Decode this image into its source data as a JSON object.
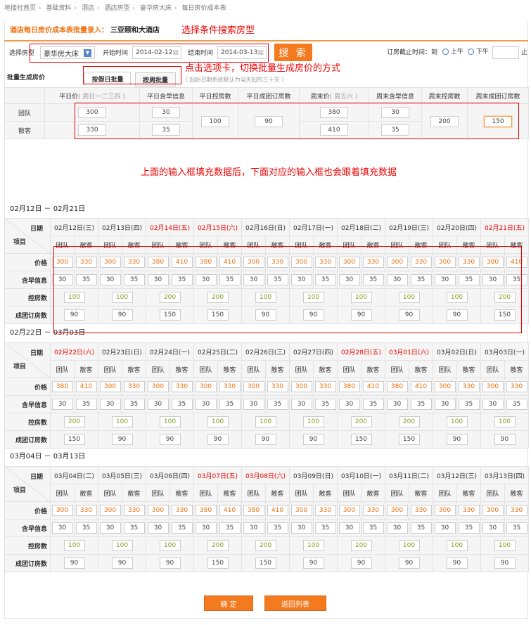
{
  "breadcrumb": [
    "地接社首页",
    "基础资料",
    "酒店",
    "酒店房型",
    "豪华房大床",
    "每日房价成本表"
  ],
  "header": {
    "title": "酒店每日房价成本表批量录入：",
    "hotel": "三亚颐和大酒店"
  },
  "annotations": {
    "search": "选择条件搜索房型",
    "tabs": "点击选项卡，切换批量生成房价的方式",
    "fill": "上面的输入框填充数据后，下面对应的输入框也会跟着填充数据"
  },
  "filters": {
    "room_type_label": "选择房型",
    "room_type_value": "豪华房大床",
    "start_label": "开始时间",
    "start_value": "2014-02-12",
    "end_label": "结束时间",
    "end_value": "2014-03-13",
    "search_button": "搜 索",
    "deadline_label": "订房截止时间：到",
    "am_label": "上午",
    "pm_label": "下午",
    "deadline_value": "",
    "deadline_suffix": "止"
  },
  "batch": {
    "label": "批量生成房价",
    "tabs": [
      "按假日批量",
      "按周批量"
    ],
    "active_tab": 0,
    "note": "（ 起始日期系统默认为当天起的三十天 ）",
    "headers": [
      {
        "main": "平日价",
        "sub": "( 周日一二三四 )"
      },
      {
        "main": "平日含早信息",
        "sub": ""
      },
      {
        "main": "平日控房数",
        "sub": ""
      },
      {
        "main": "平日成团订房数",
        "sub": ""
      },
      {
        "main": "周末价",
        "sub": "( 周五六 )"
      },
      {
        "main": "周末含早信息",
        "sub": ""
      },
      {
        "main": "周末控房数",
        "sub": ""
      },
      {
        "main": "周末成团订房数",
        "sub": ""
      }
    ],
    "row_labels": [
      "团队",
      "散客"
    ],
    "weekday_price": [
      "300",
      "330"
    ],
    "weekday_breakfast": [
      "30",
      "35"
    ],
    "weekday_control": "100",
    "weekday_group_min": "90",
    "weekend_price": [
      "380",
      "410"
    ],
    "weekend_breakfast": [
      "30",
      "35"
    ],
    "weekend_control": "200",
    "weekend_group_min": "150"
  },
  "calendar": {
    "date_label": "日期",
    "item_label": "项目",
    "sub_labels": [
      "团队",
      "散客"
    ],
    "row_labels": [
      "价格",
      "含早信息",
      "控房数",
      "成团订房数"
    ],
    "sections": [
      {
        "range": "02月12日 － 02月21日",
        "days": [
          {
            "date": "02月12日(三)",
            "weekend": false,
            "price": [
              "300",
              "330"
            ],
            "breakfast": [
              "30",
              "35"
            ],
            "control": "100",
            "group": "90"
          },
          {
            "date": "02月13日(四)",
            "weekend": false,
            "price": [
              "300",
              "330"
            ],
            "breakfast": [
              "30",
              "35"
            ],
            "control": "100",
            "group": "90"
          },
          {
            "date": "02月14日(五)",
            "weekend": true,
            "price": [
              "380",
              "410"
            ],
            "breakfast": [
              "30",
              "35"
            ],
            "control": "200",
            "group": "150"
          },
          {
            "date": "02月15日(六)",
            "weekend": true,
            "price": [
              "380",
              "410"
            ],
            "breakfast": [
              "30",
              "35"
            ],
            "control": "200",
            "group": "150"
          },
          {
            "date": "02月16日(日)",
            "weekend": false,
            "price": [
              "300",
              "330"
            ],
            "breakfast": [
              "30",
              "35"
            ],
            "control": "100",
            "group": "90"
          },
          {
            "date": "02月17日(一)",
            "weekend": false,
            "price": [
              "300",
              "330"
            ],
            "breakfast": [
              "30",
              "35"
            ],
            "control": "100",
            "group": "90"
          },
          {
            "date": "02月18日(二)",
            "weekend": false,
            "price": [
              "300",
              "330"
            ],
            "breakfast": [
              "30",
              "35"
            ],
            "control": "100",
            "group": "90"
          },
          {
            "date": "02月19日(三)",
            "weekend": false,
            "price": [
              "300",
              "330"
            ],
            "breakfast": [
              "30",
              "35"
            ],
            "control": "100",
            "group": "90"
          },
          {
            "date": "02月20日(四)",
            "weekend": false,
            "price": [
              "300",
              "330"
            ],
            "breakfast": [
              "30",
              "35"
            ],
            "control": "100",
            "group": "90"
          },
          {
            "date": "02月21日(五)",
            "weekend": true,
            "price": [
              "380",
              "410"
            ],
            "breakfast": [
              "30",
              "35"
            ],
            "control": "200",
            "group": "150"
          }
        ]
      },
      {
        "range": "02月22日 － 03月03日",
        "days": [
          {
            "date": "02月22日(六)",
            "weekend": true,
            "price": [
              "380",
              "410"
            ],
            "breakfast": [
              "30",
              "35"
            ],
            "control": "200",
            "group": "150"
          },
          {
            "date": "02月23日(日)",
            "weekend": false,
            "price": [
              "300",
              "330"
            ],
            "breakfast": [
              "30",
              "35"
            ],
            "control": "100",
            "group": "90"
          },
          {
            "date": "02月24日(一)",
            "weekend": false,
            "price": [
              "300",
              "330"
            ],
            "breakfast": [
              "30",
              "35"
            ],
            "control": "100",
            "group": "90"
          },
          {
            "date": "02月25日(二)",
            "weekend": false,
            "price": [
              "300",
              "330"
            ],
            "breakfast": [
              "30",
              "35"
            ],
            "control": "100",
            "group": "90"
          },
          {
            "date": "02月26日(三)",
            "weekend": false,
            "price": [
              "300",
              "330"
            ],
            "breakfast": [
              "30",
              "35"
            ],
            "control": "100",
            "group": "90"
          },
          {
            "date": "02月27日(四)",
            "weekend": false,
            "price": [
              "300",
              "330"
            ],
            "breakfast": [
              "30",
              "35"
            ],
            "control": "100",
            "group": "90"
          },
          {
            "date": "02月28日(五)",
            "weekend": true,
            "price": [
              "380",
              "410"
            ],
            "breakfast": [
              "30",
              "35"
            ],
            "control": "200",
            "group": "150"
          },
          {
            "date": "03月01日(六)",
            "weekend": true,
            "price": [
              "380",
              "410"
            ],
            "breakfast": [
              "30",
              "35"
            ],
            "control": "200",
            "group": "150"
          },
          {
            "date": "03月02日(日)",
            "weekend": false,
            "price": [
              "300",
              "330"
            ],
            "breakfast": [
              "30",
              "35"
            ],
            "control": "100",
            "group": "90"
          },
          {
            "date": "03月03日(一)",
            "weekend": false,
            "price": [
              "300",
              "330"
            ],
            "breakfast": [
              "30",
              "35"
            ],
            "control": "100",
            "group": "90"
          }
        ]
      },
      {
        "range": "03月04日 － 03月13日",
        "days": [
          {
            "date": "03月04日(二)",
            "weekend": false,
            "price": [
              "300",
              "330"
            ],
            "breakfast": [
              "30",
              "35"
            ],
            "control": "100",
            "group": "90"
          },
          {
            "date": "03月05日(三)",
            "weekend": false,
            "price": [
              "300",
              "330"
            ],
            "breakfast": [
              "30",
              "35"
            ],
            "control": "100",
            "group": "90"
          },
          {
            "date": "03月06日(四)",
            "weekend": false,
            "price": [
              "300",
              "330"
            ],
            "breakfast": [
              "30",
              "35"
            ],
            "control": "100",
            "group": "90"
          },
          {
            "date": "03月07日(五)",
            "weekend": true,
            "price": [
              "380",
              "410"
            ],
            "breakfast": [
              "30",
              "35"
            ],
            "control": "200",
            "group": "150"
          },
          {
            "date": "03月08日(六)",
            "weekend": true,
            "price": [
              "380",
              "410"
            ],
            "breakfast": [
              "30",
              "35"
            ],
            "control": "200",
            "group": "150"
          },
          {
            "date": "03月09日(日)",
            "weekend": false,
            "price": [
              "300",
              "330"
            ],
            "breakfast": [
              "30",
              "35"
            ],
            "control": "100",
            "group": "90"
          },
          {
            "date": "03月10日(一)",
            "weekend": false,
            "price": [
              "300",
              "330"
            ],
            "breakfast": [
              "30",
              "35"
            ],
            "control": "100",
            "group": "90"
          },
          {
            "date": "03月11日(二)",
            "weekend": false,
            "price": [
              "300",
              "330"
            ],
            "breakfast": [
              "30",
              "35"
            ],
            "control": "100",
            "group": "90"
          },
          {
            "date": "03月12日(三)",
            "weekend": false,
            "price": [
              "300",
              "330"
            ],
            "breakfast": [
              "30",
              "35"
            ],
            "control": "100",
            "group": "90"
          },
          {
            "date": "03月13日(四)",
            "weekend": false,
            "price": [
              "300",
              "330"
            ],
            "breakfast": [
              "30",
              "35"
            ],
            "control": "100",
            "group": "90"
          }
        ]
      }
    ]
  },
  "footer": {
    "confirm": "确 定",
    "back": "返回列表"
  },
  "colors": {
    "accent": "#f47a20",
    "weekend_date": "#e00000",
    "price_text": "#f06f0c",
    "control_text": "#7aa020",
    "annotation": "#e00000"
  }
}
